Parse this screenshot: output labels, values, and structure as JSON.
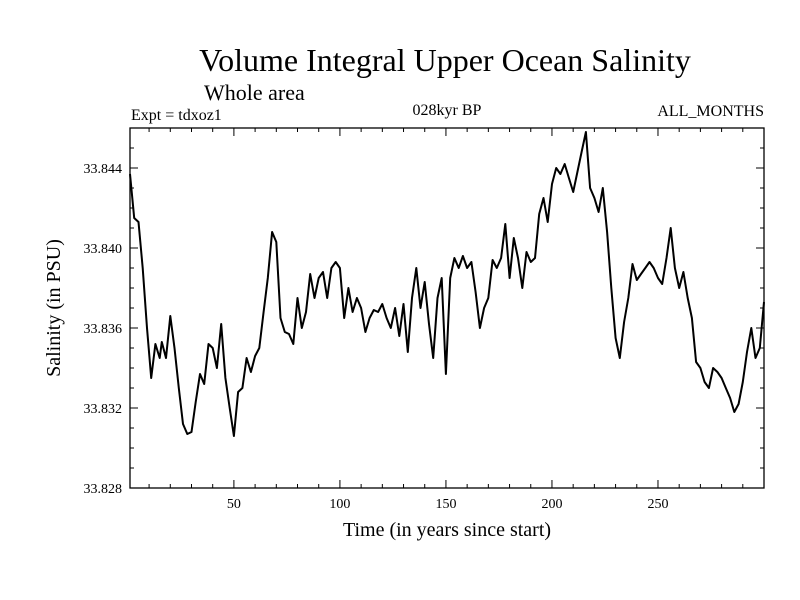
{
  "chart_data": {
    "type": "line",
    "title": "Volume Integral Upper Ocean Salinity",
    "subtitle": "Whole area",
    "annotations": {
      "left": "Expt = tdxoz1",
      "center": "028kyr BP",
      "right": "ALL_MONTHS"
    },
    "xlabel": "Time (in years since start)",
    "ylabel": "Salinity (in PSU)",
    "xlim": [
      1,
      300
    ],
    "ylim": [
      33.828,
      33.846
    ],
    "x_ticks": [
      50,
      100,
      150,
      200,
      250
    ],
    "x_tick_labels": [
      "50",
      "100",
      "150",
      "200",
      "250"
    ],
    "y_ticks": [
      33.828,
      33.832,
      33.836,
      33.84,
      33.844
    ],
    "y_tick_labels": [
      "33.828",
      "33.832",
      "33.836",
      "33.840",
      "33.844"
    ],
    "grid": false,
    "series": [
      {
        "name": "salinity",
        "x": [
          1,
          3,
          5,
          7,
          9,
          11,
          13,
          15,
          16,
          18,
          20,
          22,
          24,
          26,
          28,
          30,
          32,
          34,
          36,
          38,
          40,
          42,
          44,
          46,
          48,
          50,
          52,
          54,
          56,
          58,
          60,
          62,
          64,
          66,
          68,
          70,
          72,
          74,
          76,
          78,
          80,
          82,
          84,
          86,
          88,
          90,
          92,
          94,
          96,
          98,
          100,
          102,
          104,
          106,
          108,
          110,
          112,
          114,
          116,
          118,
          120,
          122,
          124,
          126,
          128,
          130,
          132,
          134,
          136,
          138,
          140,
          142,
          144,
          146,
          148,
          150,
          152,
          154,
          156,
          158,
          160,
          162,
          164,
          166,
          168,
          170,
          172,
          174,
          176,
          178,
          180,
          182,
          184,
          186,
          188,
          190,
          192,
          194,
          196,
          198,
          200,
          202,
          204,
          206,
          208,
          210,
          212,
          214,
          216,
          218,
          220,
          222,
          224,
          226,
          228,
          230,
          232,
          234,
          236,
          238,
          240,
          242,
          244,
          246,
          248,
          250,
          252,
          254,
          256,
          258,
          260,
          262,
          264,
          266,
          268,
          270,
          272,
          274,
          276,
          278,
          280,
          282,
          284,
          286,
          288,
          290,
          292,
          294,
          296,
          298,
          300
        ],
        "values": [
          33.8437,
          33.8415,
          33.8413,
          33.839,
          33.836,
          33.8335,
          33.8352,
          33.8345,
          33.8353,
          33.8345,
          33.8366,
          33.835,
          33.833,
          33.8312,
          33.8307,
          33.8308,
          33.8323,
          33.8337,
          33.8332,
          33.8352,
          33.835,
          33.834,
          33.8362,
          33.8335,
          33.832,
          33.8306,
          33.8328,
          33.833,
          33.8345,
          33.8338,
          33.8346,
          33.835,
          33.8368,
          33.8385,
          33.8408,
          33.8403,
          33.8365,
          33.8358,
          33.8357,
          33.8352,
          33.8375,
          33.836,
          33.8368,
          33.8387,
          33.8375,
          33.8385,
          33.8388,
          33.8375,
          33.839,
          33.8393,
          33.839,
          33.8365,
          33.838,
          33.8368,
          33.8375,
          33.837,
          33.8358,
          33.8365,
          33.8369,
          33.8368,
          33.8372,
          33.8365,
          33.836,
          33.837,
          33.8356,
          33.8372,
          33.8348,
          33.8375,
          33.839,
          33.837,
          33.8383,
          33.8362,
          33.8345,
          33.8375,
          33.8385,
          33.8337,
          33.8385,
          33.8395,
          33.839,
          33.8396,
          33.839,
          33.8393,
          33.8378,
          33.836,
          33.837,
          33.8375,
          33.8394,
          33.839,
          33.8395,
          33.8412,
          33.8385,
          33.8405,
          33.8395,
          33.838,
          33.8398,
          33.8393,
          33.8395,
          33.8417,
          33.8425,
          33.8413,
          33.8432,
          33.844,
          33.8437,
          33.8442,
          33.8435,
          33.8428,
          33.8438,
          33.8448,
          33.8458,
          33.843,
          33.8425,
          33.8418,
          33.843,
          33.8408,
          33.838,
          33.8355,
          33.8345,
          33.8363,
          33.8375,
          33.8392,
          33.8384,
          33.8387,
          33.839,
          33.8393,
          33.839,
          33.8385,
          33.8382,
          33.8395,
          33.841,
          33.839,
          33.838,
          33.8388,
          33.8375,
          33.8365,
          33.8343,
          33.834,
          33.8333,
          33.833,
          33.834,
          33.8338,
          33.8335,
          33.833,
          33.8325,
          33.8318,
          33.8322,
          33.8333,
          33.8348,
          33.836,
          33.8345,
          33.835,
          33.8373
        ]
      }
    ]
  }
}
